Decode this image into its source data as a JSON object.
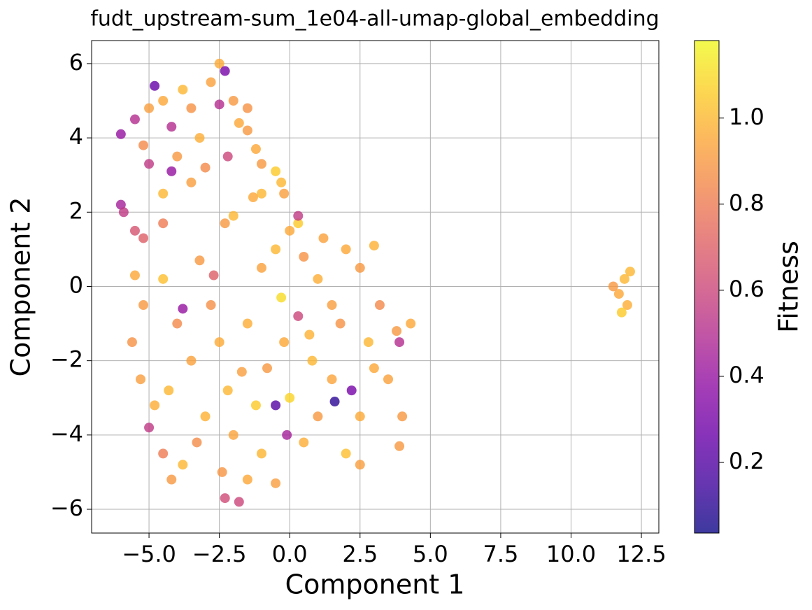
{
  "chart_data": {
    "type": "scatter",
    "title": "fudt_upstream-sum_1e04-all-umap-global_embedding",
    "xlabel": "Component 1",
    "ylabel": "Component 2",
    "xlim": [
      -7.04,
      13.12
    ],
    "ylim": [
      -6.64,
      6.62
    ],
    "xticks": [
      {
        "value": -5,
        "label": "−5.0"
      },
      {
        "value": -2.5,
        "label": "−2.5"
      },
      {
        "value": 0,
        "label": "0.0"
      },
      2.5,
      {
        "value": 5,
        "label": "5.0"
      },
      7.5,
      {
        "value": 10,
        "label": "10.0"
      },
      12.5
    ],
    "yticks": [
      {
        "value": -6,
        "label": "−6"
      },
      {
        "value": -4,
        "label": "−4"
      },
      {
        "value": -2,
        "label": "−2"
      },
      0,
      2,
      4,
      6
    ],
    "grid": true,
    "colorbar": {
      "label": "Fitness",
      "lim": [
        0.036,
        1.18
      ],
      "ticks": [
        0.2,
        0.4,
        0.6,
        0.8,
        {
          "value": 1,
          "label": "1.0"
        }
      ],
      "colormap": "plasma"
    },
    "x": [
      -5.5,
      -5.2,
      -5.6,
      -5.3,
      -4.8,
      -4.5,
      -4.2,
      -3.8,
      -4.0,
      -4.5,
      -3.5,
      -3.0,
      -3.2,
      -2.8,
      -2.5,
      -2.2,
      -2.0,
      -2.4,
      -1.8,
      -1.5,
      -1.0,
      -0.5,
      -1.2,
      -0.8,
      -1.5,
      -1.0,
      -0.5,
      0,
      0.3,
      0.5,
      1.0,
      1.5,
      2.0,
      2.5,
      3.0,
      3.2,
      2.8,
      3.5,
      4.0,
      4.3,
      3.8,
      2.5,
      2.0,
      1.5,
      1.0,
      0.5,
      0.0,
      -0.2,
      0.3,
      0.8,
      1.6,
      2.2,
      -0.5,
      -0.1,
      -3.8,
      -5.0,
      -2.7,
      1.8,
      2.5,
      -0.3,
      0.7,
      -1.7,
      -3.3,
      -4.3,
      3.0,
      3.9,
      1.2,
      0.3,
      -2.3,
      3.9,
      -6.0,
      -5.9,
      -5.2,
      -5.5,
      -4.5,
      -6.0,
      -5.5,
      -5.2,
      -5.0,
      -4.8,
      -4.5,
      -4.2,
      -4.0,
      -3.8,
      -3.5,
      -3.2,
      -3.0,
      -2.8,
      -2.5,
      -2.3,
      -2.0,
      -1.8,
      -1.5,
      -2.2,
      -3.5,
      -4.5,
      -4.2,
      -5.0,
      -2.5,
      -1.5,
      -1.2,
      -1.0,
      -1.0,
      -1.3,
      -0.5,
      -0.3,
      -0.2,
      -2.0,
      -2.3,
      11.7,
      11.9,
      12.0,
      11.8,
      12.1,
      11.5
    ],
    "y": [
      0.3,
      -0.5,
      -1.5,
      -2.5,
      -3.2,
      -4.5,
      -5.2,
      -4.8,
      -1.0,
      0.2,
      -2,
      -3.5,
      0.7,
      -0.5,
      -1.5,
      -2.8,
      -4,
      -5,
      -5.8,
      -5.2,
      -4.5,
      -5.3,
      -3.2,
      -2.2,
      -1,
      0.5,
      1.0,
      1.5,
      1.7,
      0.8,
      0.2,
      -0.5,
      1.0,
      0.5,
      1.1,
      -0.5,
      -1.5,
      -2.5,
      -3.5,
      -1.0,
      -1.2,
      -3.5,
      -4.5,
      -2.5,
      -3.5,
      -4.2,
      -3.0,
      -1.5,
      -0.8,
      -2,
      -3.1,
      -2.8,
      -3.2,
      -4,
      -0.6,
      -3.8,
      0.3,
      -1,
      -4.8,
      -0.3,
      -1.3,
      -2.3,
      -4.2,
      -2.8,
      -2.2,
      -4.3,
      1.3,
      1.9,
      -5.7,
      -1.5,
      2.2,
      2.0,
      1.3,
      1.5,
      1.7,
      4.1,
      4.5,
      3.8,
      4.8,
      5.4,
      5.0,
      4.3,
      3.5,
      5.3,
      4.8,
      4.0,
      3.2,
      5.5,
      6.0,
      5.8,
      5.0,
      4.4,
      4.8,
      3.5,
      2.8,
      2.5,
      3.1,
      3.3,
      4.9,
      4.2,
      3.7,
      3.3,
      2.5,
      2.4,
      3.1,
      2.8,
      2.5,
      1.9,
      1.7,
      -0.2,
      0.2,
      -0.5,
      -0.7,
      0.4,
      0.0
    ],
    "values": [
      0.95,
      0.9,
      0.88,
      0.92,
      0.97,
      0.8,
      0.9,
      1.0,
      0.85,
      1.02,
      0.93,
      0.98,
      0.9,
      0.87,
      0.96,
      1.0,
      0.94,
      0.89,
      0.6,
      0.95,
      0.99,
      0.92,
      1.05,
      0.9,
      0.97,
      0.93,
      1.0,
      0.95,
      1.05,
      0.88,
      0.97,
      0.92,
      0.95,
      0.9,
      0.98,
      0.85,
      1.0,
      0.93,
      0.9,
      0.95,
      0.9,
      0.96,
      1.02,
      0.94,
      0.9,
      0.97,
      1.08,
      0.95,
      0.6,
      1.0,
      0.1,
      0.3,
      0.2,
      0.45,
      0.4,
      0.55,
      0.7,
      0.88,
      0.92,
      1.1,
      0.98,
      0.92,
      0.86,
      1.0,
      0.95,
      0.9,
      0.93,
      0.55,
      0.62,
      0.5,
      0.45,
      0.55,
      0.7,
      0.65,
      0.8,
      0.4,
      0.5,
      0.85,
      0.92,
      0.25,
      0.95,
      0.5,
      0.9,
      1.0,
      0.88,
      0.97,
      0.85,
      0.93,
      0.96,
      0.3,
      0.9,
      0.95,
      0.88,
      0.6,
      0.92,
      1.0,
      0.4,
      0.55,
      0.5,
      0.9,
      0.95,
      0.9,
      1.0,
      0.95,
      1.05,
      1.0,
      0.92,
      1.0,
      0.9,
      0.95,
      1.0,
      0.97,
      1.05,
      1.0,
      0.9
    ]
  }
}
